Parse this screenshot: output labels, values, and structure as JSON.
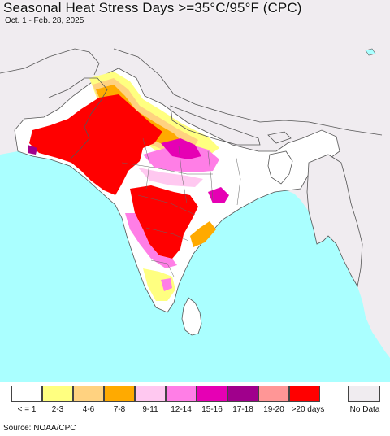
{
  "title": "Seasonal Heat Stress Days >=35°C/95°F (CPC)",
  "subtitle": "Oct. 1 - Feb. 28, 2025",
  "source": "Source: NOAA/CPC",
  "colors": {
    "ocean": "#aaffff",
    "land_background": "#f0ecf0",
    "no_data": "#f0ecf0",
    "borders": "#555555"
  },
  "legend": {
    "items": [
      {
        "label": "< = 1",
        "color": "#ffffff"
      },
      {
        "label": "2-3",
        "color": "#ffff80"
      },
      {
        "label": "4-6",
        "color": "#ffd280"
      },
      {
        "label": "7-8",
        "color": "#ffaa00"
      },
      {
        "label": "9-11",
        "color": "#ffc8f0"
      },
      {
        "label": "12-14",
        "color": "#ff7ee6"
      },
      {
        "label": "15-16",
        "color": "#e600b4"
      },
      {
        "label": "17-18",
        "color": "#a0008c"
      },
      {
        "label": "19-20",
        "color": "#ff9696"
      },
      {
        "label": ">20 days",
        "color": "#ff0000"
      }
    ],
    "no_data": {
      "label": "No Data",
      "color": "#f0ecf0"
    }
  }
}
